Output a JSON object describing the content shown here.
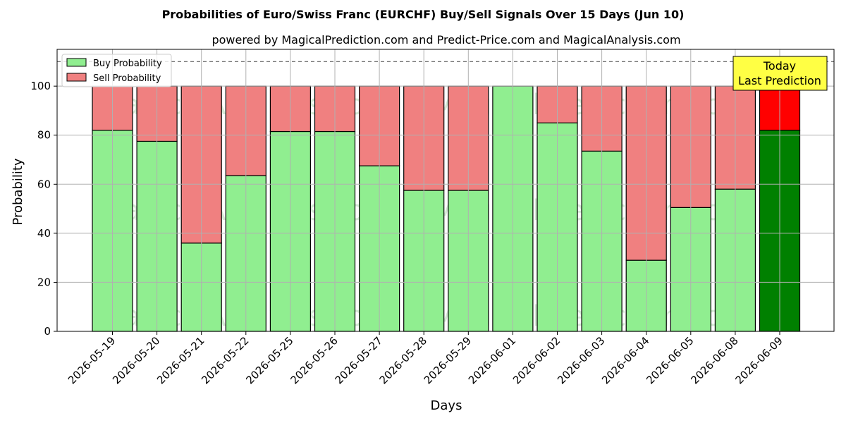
{
  "chart_data": {
    "type": "bar",
    "stacked": true,
    "title": "Probabilities of Euro/Swiss Franc (EURCHF) Buy/Sell Signals Over 15 Days (Jun 10)",
    "subtitle": "powered by MagicalPrediction.com and Predict-Price.com and MagicalAnalysis.com",
    "xlabel": "Days",
    "ylabel": "Probability",
    "ylim": [
      0,
      115
    ],
    "yticks": [
      0,
      20,
      40,
      60,
      80,
      100
    ],
    "grid": true,
    "legend_position": "top-left",
    "reference_line": 110,
    "categories": [
      "2026-05-19",
      "2026-05-20",
      "2026-05-21",
      "2026-05-22",
      "2026-05-25",
      "2026-05-26",
      "2026-05-27",
      "2026-05-28",
      "2026-05-29",
      "2026-06-01",
      "2026-06-02",
      "2026-06-03",
      "2026-06-04",
      "2026-06-05",
      "2026-06-08",
      "2026-06-09"
    ],
    "series": [
      {
        "name": "Buy Probability",
        "color": "#90ee90",
        "highlight_color": "#008000",
        "values": [
          82,
          77.5,
          36,
          63.5,
          81.5,
          81.5,
          67.5,
          57.5,
          57.5,
          100,
          85,
          73.5,
          29,
          50.5,
          58,
          82
        ]
      },
      {
        "name": "Sell Probability",
        "color": "#f08080",
        "highlight_color": "#ff0000",
        "values": [
          18,
          22.5,
          64,
          36.5,
          18.5,
          18.5,
          32.5,
          42.5,
          42.5,
          0,
          15,
          26.5,
          71,
          49.5,
          42,
          18
        ]
      }
    ],
    "highlight_index": 15,
    "annotation": {
      "line1": "Today",
      "line2": "Last Prediction",
      "color": "#ffff44"
    },
    "watermarks": [
      "MagicalAnalysis.com",
      "MagicalPrediction.com"
    ]
  }
}
